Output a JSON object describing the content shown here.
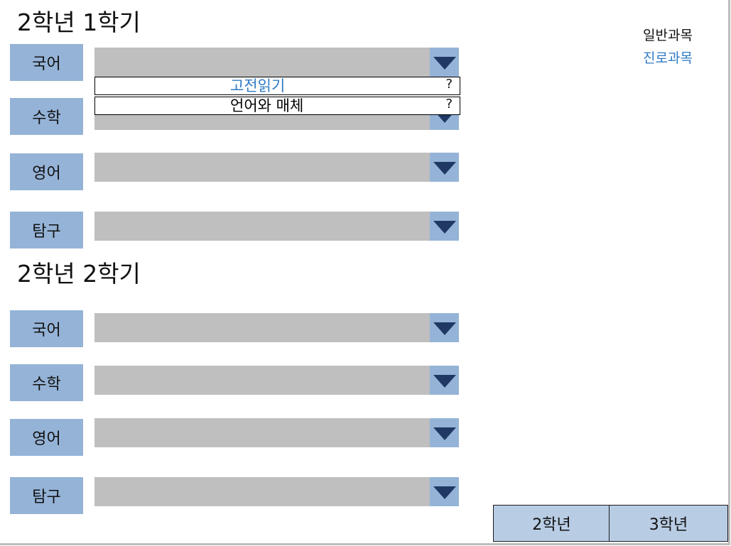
{
  "semesters": [
    {
      "title": "2학년 1학기",
      "subjects": [
        {
          "label": "국어"
        },
        {
          "label": "수학"
        },
        {
          "label": "영어"
        },
        {
          "label": "탐구"
        }
      ]
    },
    {
      "title": "2학년 2학기",
      "subjects": [
        {
          "label": "국어"
        },
        {
          "label": "수학"
        },
        {
          "label": "영어"
        },
        {
          "label": "탐구"
        }
      ]
    }
  ],
  "legend": {
    "general": "일반과목",
    "career": "진로과목"
  },
  "open_dropdown": {
    "options": [
      {
        "label": "고전읽기",
        "kind": "career",
        "help": "?"
      },
      {
        "label": "언어와 매체",
        "kind": "general",
        "help": "?"
      }
    ]
  },
  "grade_buttons": [
    {
      "label": "2학년"
    },
    {
      "label": "3학년"
    }
  ],
  "colors": {
    "subject_label_bg": "#95b3d7",
    "combo_bg": "#bfbfbf",
    "dropdown_arrow": "#1f3864",
    "career_text": "#2f7bc4",
    "grade_button_bg": "#b8cce4"
  },
  "icons": {
    "dropdown": "triangle-down-icon"
  }
}
